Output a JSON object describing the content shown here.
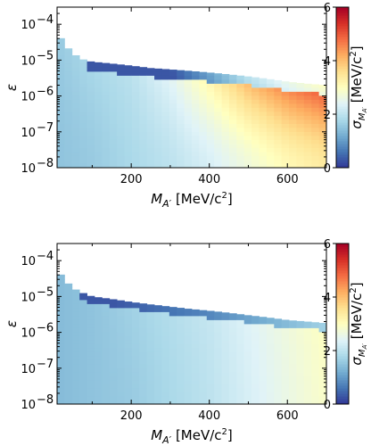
{
  "chart_data": [
    {
      "type": "heatmap",
      "panel": "top",
      "x_label_main": "M",
      "x_label_sub": "A′",
      "x_label_units": " [MeV/c",
      "x_label_tail": "]",
      "y_label": "ε",
      "colorbar_label_main": "σ",
      "colorbar_label_sub": "M",
      "colorbar_label_subsub": "A′",
      "colorbar_label_units": " [MeV/c",
      "colorbar_label_tail": "]",
      "xlim": [
        10,
        700
      ],
      "ylim": [
        1e-08,
        0.0003
      ],
      "y_scale": "log",
      "x_ticks": [
        200,
        400,
        600
      ],
      "x_tick_labels": [
        "200",
        "400",
        "600"
      ],
      "y_ticks": [
        1e-08,
        1e-07,
        1e-06,
        1e-05,
        0.0001
      ],
      "y_tick_labels": [
        "10",
        "10",
        "10",
        "10",
        "10"
      ],
      "y_tick_exponents": [
        "−8",
        "−7",
        "−6",
        "−5",
        "−4"
      ],
      "colorbar_range": [
        0,
        6
      ],
      "colorbar_ticks": [
        0,
        2,
        4,
        6
      ],
      "colorbar_tick_labels": [
        "0",
        "2",
        "4",
        "6"
      ],
      "colormap": "RdYlBu_r",
      "upper_boundary": {
        "mass": [
          10,
          20,
          30,
          40,
          50,
          60,
          80,
          100,
          150,
          200,
          250,
          300,
          350,
          400,
          450,
          500,
          550,
          600,
          650,
          700
        ],
        "epsilon": [
          6e-05,
          4e-05,
          3e-05,
          2e-05,
          1.6e-05,
          1.3e-05,
          1e-05,
          9e-06,
          8e-06,
          7e-06,
          6e-06,
          5.5e-06,
          5e-06,
          4.5e-06,
          4e-06,
          3.5e-06,
          3e-06,
          2.5e-06,
          2.2e-06,
          2e-06
        ]
      },
      "sigma_trend": {
        "mass": [
          10,
          100,
          200,
          300,
          400,
          500,
          600,
          700
        ],
        "sigma_low_eps": [
          1.5,
          1.6,
          1.8,
          2.0,
          2.3,
          2.7,
          3.1,
          3.4
        ],
        "sigma_high_eps": [
          1.6,
          1.8,
          2.0,
          2.5,
          3.3,
          4.2,
          4.8,
          5.2
        ]
      }
    },
    {
      "type": "heatmap",
      "panel": "bottom",
      "x_label_main": "M",
      "x_label_sub": "A′",
      "x_label_units": " [MeV/c",
      "x_label_tail": "]",
      "y_label": "ε",
      "colorbar_label_main": "σ",
      "colorbar_label_sub": "M",
      "colorbar_label_subsub": "A′",
      "colorbar_label_units": " [MeV/c",
      "colorbar_label_tail": "]",
      "xlim": [
        10,
        700
      ],
      "ylim": [
        1e-08,
        0.0003
      ],
      "y_scale": "log",
      "x_ticks": [
        200,
        400,
        600
      ],
      "x_tick_labels": [
        "200",
        "400",
        "600"
      ],
      "y_ticks": [
        1e-08,
        1e-07,
        1e-06,
        1e-05,
        0.0001
      ],
      "y_tick_labels": [
        "10",
        "10",
        "10",
        "10",
        "10"
      ],
      "y_tick_exponents": [
        "−8",
        "−7",
        "−6",
        "−5",
        "−4"
      ],
      "colorbar_range": [
        0,
        6
      ],
      "colorbar_ticks": [
        0,
        2,
        4,
        6
      ],
      "colorbar_tick_labels": [
        "0",
        "2",
        "4",
        "6"
      ],
      "colormap": "RdYlBu_r",
      "upper_boundary": {
        "mass": [
          10,
          20,
          30,
          40,
          50,
          60,
          80,
          100,
          150,
          200,
          250,
          300,
          350,
          400,
          450,
          500,
          550,
          600,
          650,
          700
        ],
        "epsilon": [
          6e-05,
          4e-05,
          3e-05,
          2.2e-05,
          1.8e-05,
          1.5e-05,
          1.2e-05,
          1e-05,
          8.5e-06,
          7e-06,
          6e-06,
          5.2e-06,
          4.5e-06,
          4e-06,
          3.5e-06,
          3e-06,
          2.6e-06,
          2.2e-06,
          2e-06,
          1.8e-06
        ]
      },
      "sigma_trend": {
        "mass": [
          10,
          100,
          200,
          300,
          400,
          500,
          600,
          700
        ],
        "sigma_low_eps": [
          1.4,
          1.5,
          1.6,
          1.8,
          2.0,
          2.3,
          2.6,
          2.9
        ],
        "sigma_high_eps": [
          1.4,
          1.5,
          1.7,
          1.9,
          2.1,
          2.4,
          2.7,
          3.0
        ]
      }
    }
  ]
}
